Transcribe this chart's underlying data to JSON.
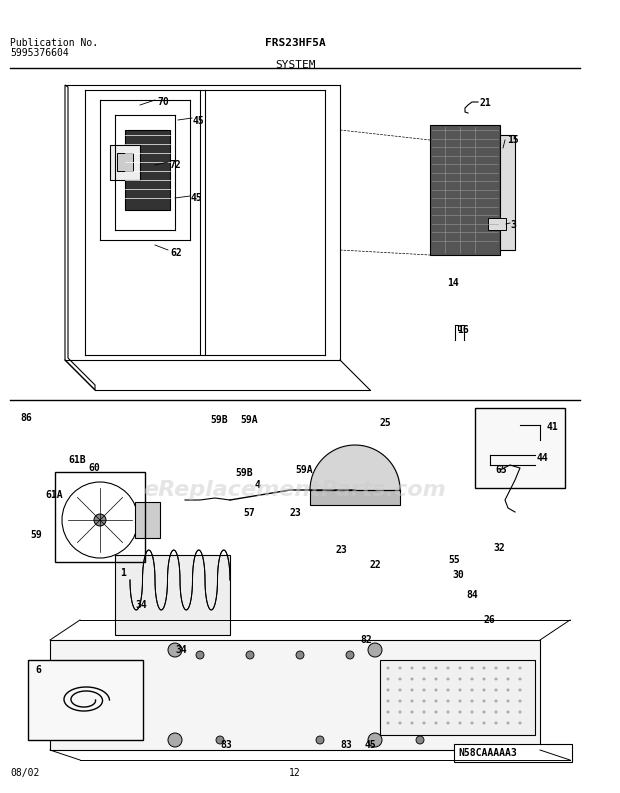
{
  "title_model": "FRS23HF5A",
  "title_section": "SYSTEM",
  "pub_no_label": "Publication No.",
  "pub_no": "5995376604",
  "date": "08/02",
  "page": "12",
  "watermark": "eReplacementParts.com",
  "diagram_id": "N58CAAAAA3",
  "bg_color": "#ffffff",
  "line_color": "#000000",
  "text_color": "#000000",
  "gray_color": "#888888",
  "light_gray": "#cccccc",
  "font_size_header": 8,
  "font_size_label": 7,
  "font_size_part": 7
}
